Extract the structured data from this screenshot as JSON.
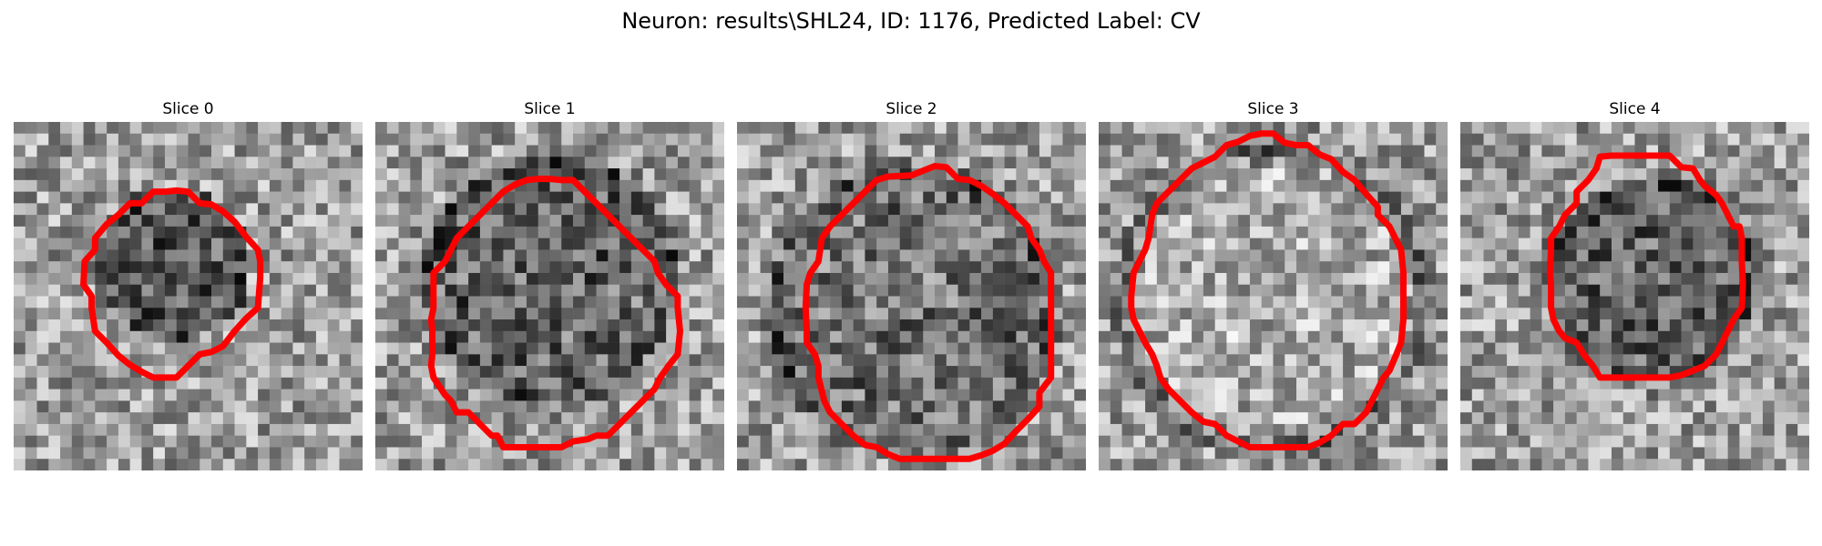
{
  "figure": {
    "title": "Neuron: results\\SHL24, ID: 1176, Predicted Label: CV",
    "contour_color": "#ff0000"
  },
  "slices": [
    {
      "title": "Slice 0"
    },
    {
      "title": "Slice 1"
    },
    {
      "title": "Slice 2"
    },
    {
      "title": "Slice 3"
    },
    {
      "title": "Slice 4"
    }
  ]
}
